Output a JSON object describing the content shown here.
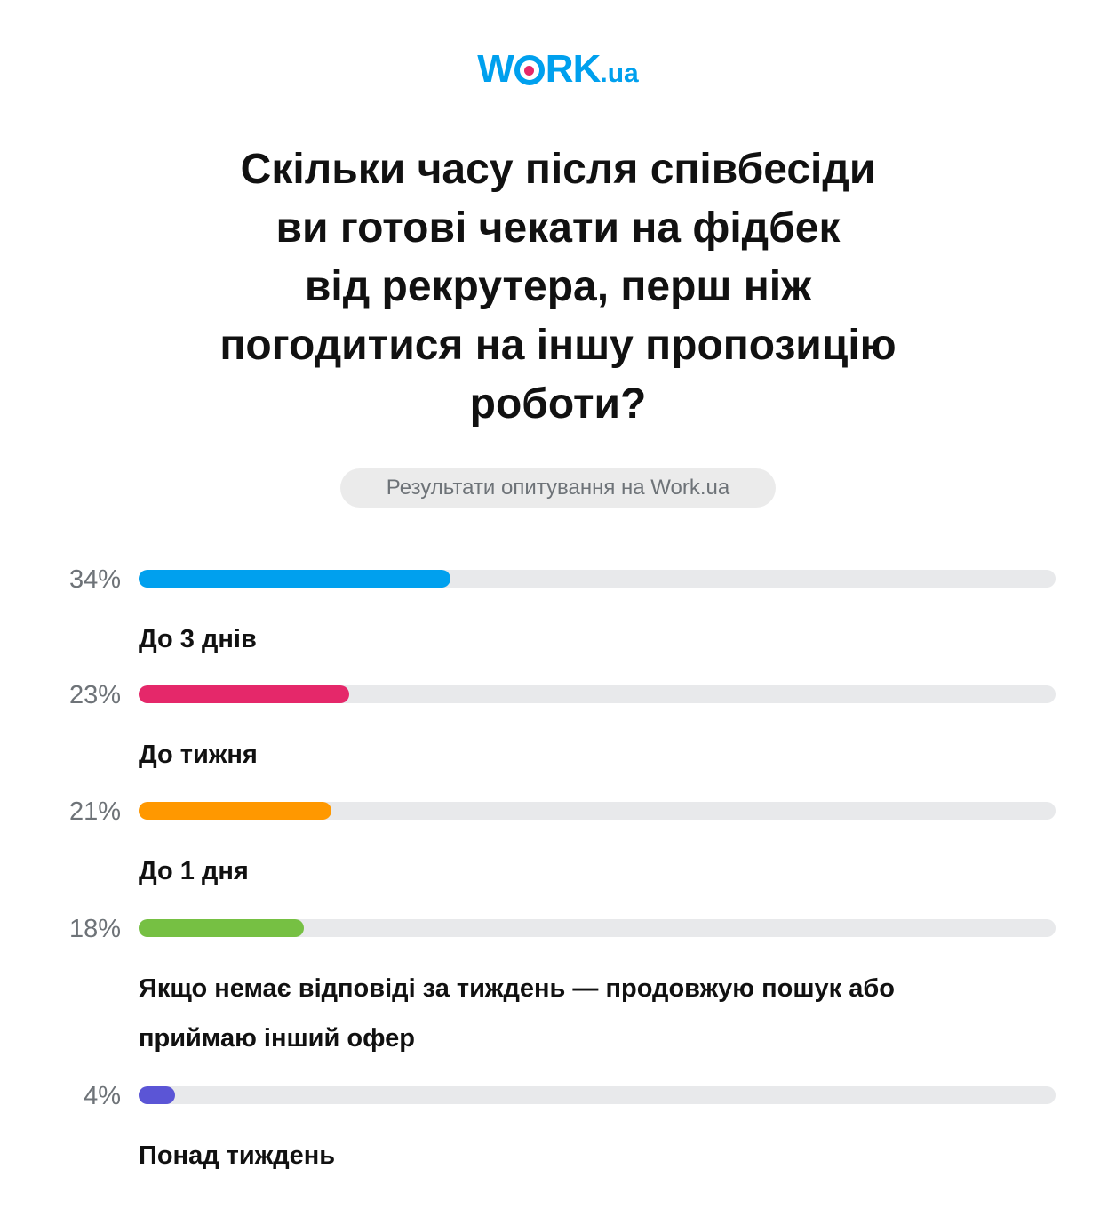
{
  "logo": {
    "w": "W",
    "rk": "RK",
    "ua": ".ua"
  },
  "title_lines": [
    "Скільки часу після співбесіди",
    "ви готові чекати на фідбек",
    "від рекрутера, перш ніж",
    "погодитися на іншу пропозицію",
    "роботи?"
  ],
  "subtitle": "Результати опитування на Work.ua",
  "chart_data": {
    "type": "bar",
    "orientation": "horizontal",
    "xlim": [
      0,
      100
    ],
    "categories": [
      "До 3 днів",
      "До тижня",
      "До 1 дня",
      "Якщо немає відповіді за тиждень — продовжую пошук або приймаю інший офер",
      "Понад тиждень"
    ],
    "values": [
      34,
      23,
      21,
      18,
      4
    ],
    "value_labels": [
      "34%",
      "23%",
      "21%",
      "18%",
      "4%"
    ],
    "colors": [
      "#00a0ee",
      "#e5286a",
      "#ff9800",
      "#76c043",
      "#5b55d6"
    ],
    "track_color": "#e8e9eb"
  }
}
